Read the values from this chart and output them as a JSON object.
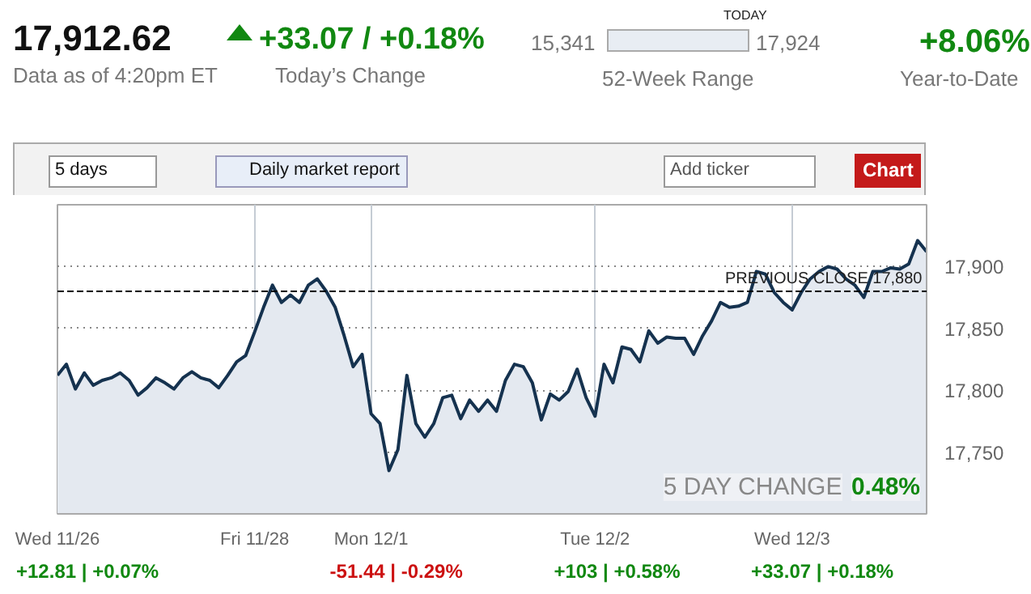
{
  "chart_data": {
    "type": "area",
    "categories": [
      "Wed 11/26",
      null,
      null,
      null,
      null,
      null,
      null,
      null,
      null,
      null,
      null,
      null,
      null,
      null,
      null,
      null,
      null,
      null,
      null,
      null,
      null,
      null,
      "Fri 11/28",
      null,
      null,
      null,
      null,
      null,
      null,
      null,
      null,
      null,
      null,
      null,
      null,
      "Mon 12/1",
      null,
      null,
      null,
      null,
      null,
      null,
      null,
      null,
      null,
      null,
      null,
      null,
      null,
      null,
      null,
      null,
      null,
      null,
      null,
      null,
      null,
      null,
      null,
      null,
      "Tue 12/2",
      null,
      null,
      null,
      null,
      null,
      null,
      null,
      null,
      null,
      null,
      null,
      null,
      null,
      null,
      null,
      null,
      null,
      null,
      null,
      null,
      null,
      "Wed 12/3",
      null,
      null,
      null,
      null,
      null,
      null,
      null,
      null,
      null,
      null,
      null,
      null,
      null,
      null,
      null
    ],
    "series": [
      {
        "color": "#15324f",
        "values": [
          17812,
          17821,
          17801,
          17814,
          17804,
          17808,
          17810,
          17814,
          17808,
          17796,
          17802,
          17810,
          17806,
          17801,
          17810,
          17815,
          17810,
          17808,
          17802,
          17812,
          17823,
          17828,
          17847,
          17867,
          17885,
          17871,
          17877,
          17871,
          17885,
          17890,
          17880,
          17867,
          17844,
          17819,
          17829,
          17781,
          17773,
          17735,
          17752,
          17812,
          17773,
          17762,
          17773,
          17794,
          17796,
          17777,
          17792,
          17783,
          17792,
          17783,
          17808,
          17821,
          17819,
          17806,
          17776,
          17797,
          17792,
          17799,
          17817,
          17794,
          17779,
          17821,
          17806,
          17835,
          17833,
          17823,
          17848,
          17838,
          17843,
          17842,
          17842,
          17829,
          17844,
          17856,
          17871,
          17867,
          17868,
          17871,
          17896,
          17894,
          17879,
          17871,
          17865,
          17879,
          17890,
          17896,
          17900,
          17898,
          17890,
          17885,
          17875,
          17896,
          17896,
          17899,
          17898,
          17902,
          17921,
          17912
        ]
      }
    ],
    "ylim": [
      17700,
      17950
    ],
    "yticks": [
      {
        "value": 17750,
        "label": "17,750"
      },
      {
        "value": 17800,
        "label": "17,800"
      },
      {
        "value": 17850,
        "label": "17,850"
      },
      {
        "value": 17900,
        "label": "17,900"
      }
    ],
    "grid": true,
    "ref_lines": [
      {
        "axis": "y",
        "value": 17880,
        "label": "PREVIOUS CLOSE 17,880",
        "color": "#000000",
        "line_style": "dashed"
      }
    ],
    "annotations": [
      "17,912.62",
      "Data as of 4:20pm ET",
      "+33.07 / +0.18%",
      "Today’s Change",
      "15,341",
      "TODAY",
      "17,924",
      "52-Week Range",
      "+8.06%",
      "Year-to-Date",
      "5 days",
      "Daily market report",
      "Add ticker",
      "Chart",
      "5 DAY CHANGE",
      "0.48%",
      "+12.81 | +0.07%",
      "-51.44 | -0.29%",
      "+103 | +0.58%",
      "+33.07 | +0.18%"
    ]
  }
}
